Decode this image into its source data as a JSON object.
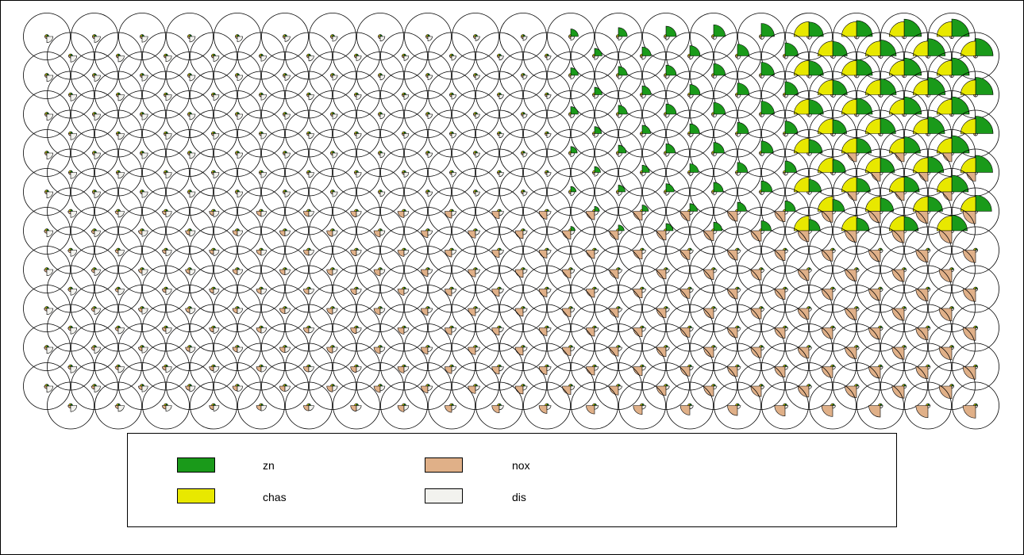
{
  "chart_data": {
    "type": "segment-star-grid",
    "title": "",
    "xlabel": "",
    "ylabel": "",
    "grid_cols": 20,
    "grid_rows": 20,
    "layout": "hexagonal",
    "series": [
      {
        "name": "zn",
        "color": "#1a9a1a"
      },
      {
        "name": "chas",
        "color": "#e8e800"
      },
      {
        "name": "nox",
        "color": "#e0b088"
      },
      {
        "name": "dis",
        "color": "#f2f2ee"
      }
    ],
    "legend_placement": "bottom-center"
  }
}
